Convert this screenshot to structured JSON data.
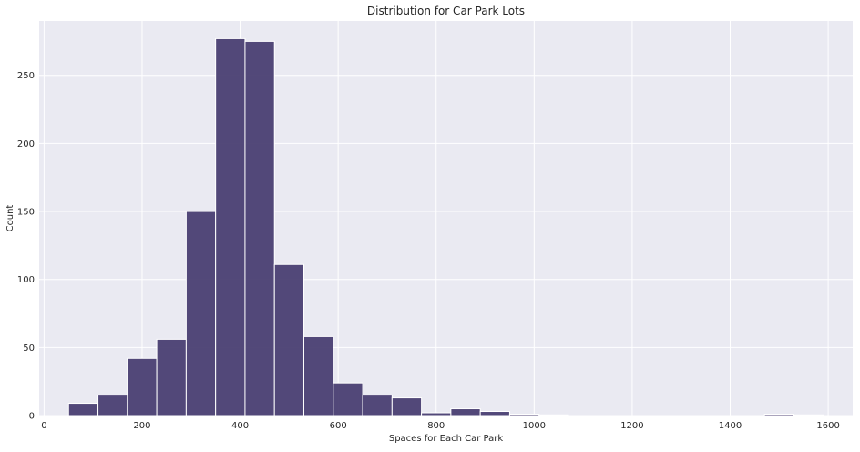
{
  "chart_data": {
    "type": "bar",
    "title": "Distribution for Car Park Lots",
    "xlabel": "Spaces for Each Car Park",
    "ylabel": "Count",
    "xlim": [
      -10,
      1650
    ],
    "ylim": [
      0,
      290
    ],
    "xticks": [
      0,
      200,
      400,
      600,
      800,
      1000,
      1200,
      1400,
      1600
    ],
    "yticks": [
      0,
      50,
      100,
      150,
      200,
      250
    ],
    "grid": true,
    "bar_color": "#4a3f72",
    "background_color": "#eaeaf2",
    "series": [
      {
        "bins": [
          {
            "x0": 50,
            "x1": 110,
            "count": 9
          },
          {
            "x0": 110,
            "x1": 170,
            "count": 15
          },
          {
            "x0": 170,
            "x1": 230,
            "count": 42
          },
          {
            "x0": 230,
            "x1": 290,
            "count": 56
          },
          {
            "x0": 290,
            "x1": 350,
            "count": 150
          },
          {
            "x0": 350,
            "x1": 410,
            "count": 277
          },
          {
            "x0": 410,
            "x1": 470,
            "count": 275
          },
          {
            "x0": 470,
            "x1": 530,
            "count": 111
          },
          {
            "x0": 530,
            "x1": 590,
            "count": 58
          },
          {
            "x0": 590,
            "x1": 650,
            "count": 24
          },
          {
            "x0": 650,
            "x1": 710,
            "count": 15
          },
          {
            "x0": 710,
            "x1": 770,
            "count": 13
          },
          {
            "x0": 770,
            "x1": 830,
            "count": 2
          },
          {
            "x0": 830,
            "x1": 890,
            "count": 5
          },
          {
            "x0": 890,
            "x1": 950,
            "count": 3
          },
          {
            "x0": 950,
            "x1": 1010,
            "count": 1
          },
          {
            "x0": 1010,
            "x1": 1070,
            "count": 0.5
          },
          {
            "x0": 1470,
            "x1": 1530,
            "count": 1
          },
          {
            "x0": 1530,
            "x1": 1590,
            "count": 0.5
          }
        ]
      }
    ]
  }
}
